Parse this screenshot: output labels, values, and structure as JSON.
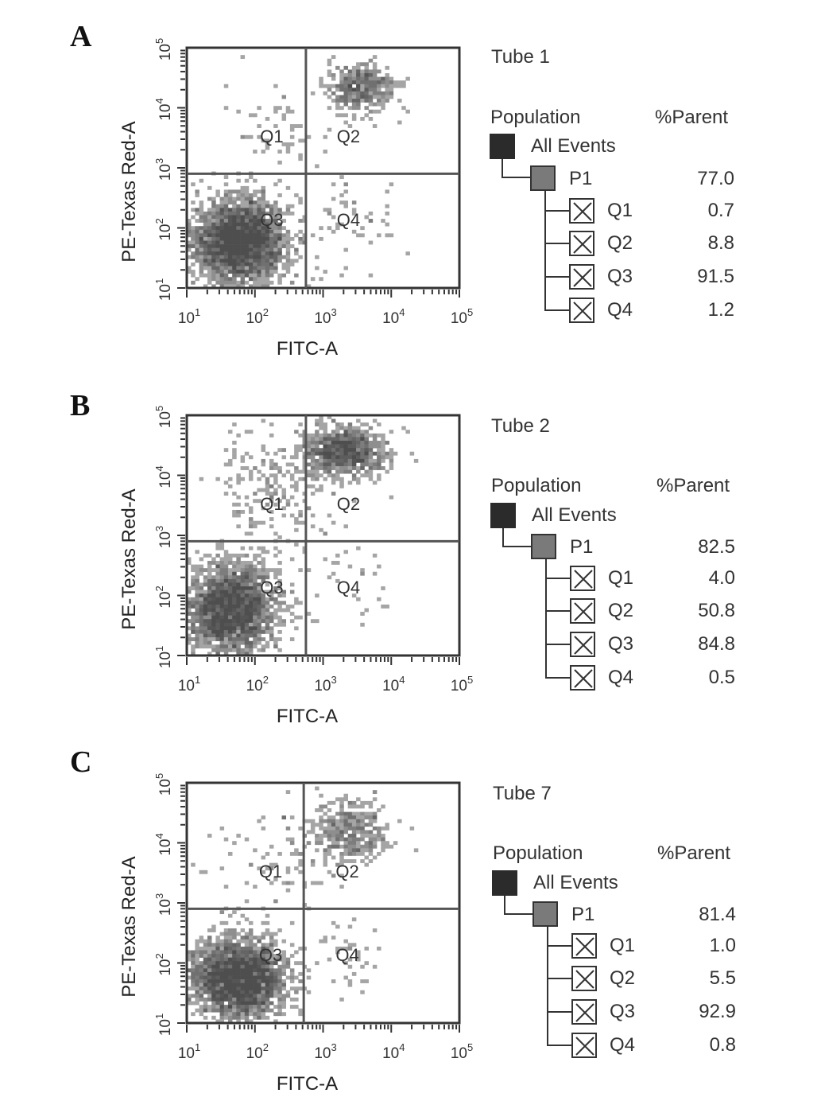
{
  "colors": {
    "axis": "#333333",
    "density_dark": "#4a4a4a",
    "density_light": "#c9c9c9",
    "gate": "#555555"
  },
  "chart_data": [
    {
      "type": "scatter",
      "panel_label": "A",
      "tube": "Tube 1",
      "xlabel": "FITC-A",
      "ylabel": "PE-Texas Red-A",
      "xscale": "log",
      "yscale": "log",
      "xlim": [
        10,
        100000
      ],
      "ylim": [
        10,
        100000
      ],
      "x_ticks": [
        10,
        100,
        1000,
        10000,
        100000
      ],
      "y_ticks": [
        10,
        100,
        1000,
        10000,
        100000
      ],
      "gate": {
        "x": 560,
        "y": 800
      },
      "quadrant_labels": [
        "Q1",
        "Q2",
        "Q3",
        "Q4"
      ],
      "clusters": [
        {
          "name": "Q3",
          "x": 60,
          "y": 60,
          "sx": 0.35,
          "sy": 0.35,
          "n": 2600
        },
        {
          "name": "Q2",
          "x": 3500,
          "y": 22000,
          "sx": 0.25,
          "sy": 0.18,
          "n": 420
        },
        {
          "name": "Q1",
          "x": 250,
          "y": 5000,
          "sx": 0.4,
          "sy": 0.45,
          "n": 60
        },
        {
          "name": "Q4",
          "x": 3000,
          "y": 120,
          "sx": 0.35,
          "sy": 0.35,
          "n": 50
        }
      ],
      "population_header": "Population",
      "parent_header": "%Parent",
      "populations": [
        {
          "name": "All Events",
          "value": ""
        },
        {
          "name": "P1",
          "value": "77.0"
        },
        {
          "name": "Q1",
          "value": "0.7"
        },
        {
          "name": "Q2",
          "value": "8.8"
        },
        {
          "name": "Q3",
          "value": "91.5"
        },
        {
          "name": "Q4",
          "value": "1.2"
        }
      ]
    },
    {
      "type": "scatter",
      "panel_label": "B",
      "tube": "Tube 2",
      "xlabel": "FITC-A",
      "ylabel": "PE-Texas Red-A",
      "xscale": "log",
      "yscale": "log",
      "xlim": [
        10,
        100000
      ],
      "ylim": [
        10,
        100000
      ],
      "x_ticks": [
        10,
        100,
        1000,
        10000,
        100000
      ],
      "y_ticks": [
        10,
        100,
        1000,
        10000,
        100000
      ],
      "gate": {
        "x": 560,
        "y": 800
      },
      "quadrant_labels": [
        "Q1",
        "Q2",
        "Q3",
        "Q4"
      ],
      "clusters": [
        {
          "name": "Q3",
          "x": 45,
          "y": 60,
          "sx": 0.33,
          "sy": 0.38,
          "n": 2200
        },
        {
          "name": "Q2",
          "x": 2000,
          "y": 25000,
          "sx": 0.3,
          "sy": 0.2,
          "n": 900
        },
        {
          "name": "Q1",
          "x": 200,
          "y": 6000,
          "sx": 0.45,
          "sy": 0.45,
          "n": 220
        },
        {
          "name": "Q4",
          "x": 2500,
          "y": 150,
          "sx": 0.35,
          "sy": 0.35,
          "n": 30
        }
      ],
      "population_header": "Population",
      "parent_header": "%Parent",
      "populations": [
        {
          "name": "All Events",
          "value": ""
        },
        {
          "name": "P1",
          "value": "82.5"
        },
        {
          "name": "Q1",
          "value": "4.0"
        },
        {
          "name": "Q2",
          "value": "50.8"
        },
        {
          "name": "Q3",
          "value": "84.8"
        },
        {
          "name": "Q4",
          "value": "0.5"
        }
      ]
    },
    {
      "type": "scatter",
      "panel_label": "C",
      "tube": "Tube 7",
      "xlabel": "FITC-A",
      "ylabel": "PE-Texas Red-A",
      "xscale": "log",
      "yscale": "log",
      "xlim": [
        10,
        100000
      ],
      "ylim": [
        10,
        100000
      ],
      "x_ticks": [
        10,
        100,
        1000,
        10000,
        100000
      ],
      "y_ticks": [
        10,
        100,
        1000,
        10000,
        100000
      ],
      "gate": {
        "x": 520,
        "y": 800
      },
      "quadrant_labels": [
        "Q1",
        "Q2",
        "Q3",
        "Q4"
      ],
      "clusters": [
        {
          "name": "Q3",
          "x": 55,
          "y": 55,
          "sx": 0.35,
          "sy": 0.33,
          "n": 2500
        },
        {
          "name": "Q2",
          "x": 2500,
          "y": 16000,
          "sx": 0.3,
          "sy": 0.25,
          "n": 380
        },
        {
          "name": "Q1",
          "x": 250,
          "y": 5000,
          "sx": 0.45,
          "sy": 0.45,
          "n": 90
        },
        {
          "name": "Q4",
          "x": 2500,
          "y": 130,
          "sx": 0.35,
          "sy": 0.35,
          "n": 40
        }
      ],
      "population_header": "Population",
      "parent_header": "%Parent",
      "populations": [
        {
          "name": "All Events",
          "value": ""
        },
        {
          "name": "P1",
          "value": "81.4"
        },
        {
          "name": "Q1",
          "value": "1.0"
        },
        {
          "name": "Q2",
          "value": "5.5"
        },
        {
          "name": "Q3",
          "value": "92.9"
        },
        {
          "name": "Q4",
          "value": "0.8"
        }
      ]
    }
  ]
}
